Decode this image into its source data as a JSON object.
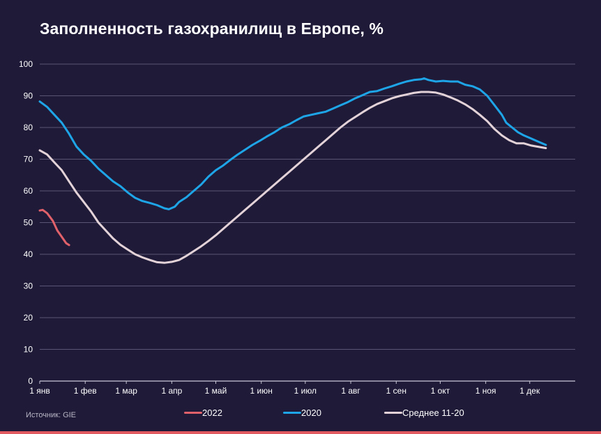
{
  "title": "Заполненность газохранилищ в Европе, %",
  "source": "Источник: GIE",
  "chart_data": {
    "type": "line",
    "title": "Заполненность газохранилищ в Европе, %",
    "xlabel": "",
    "ylabel": "",
    "ylim": [
      0,
      100
    ],
    "yticks": [
      0,
      10,
      20,
      30,
      40,
      50,
      60,
      70,
      80,
      90,
      100
    ],
    "xlim": [
      0,
      365
    ],
    "xticks": [
      {
        "x": 0,
        "label": "1 янв"
      },
      {
        "x": 31,
        "label": "1 фев"
      },
      {
        "x": 59,
        "label": "1 мар"
      },
      {
        "x": 90,
        "label": "1 апр"
      },
      {
        "x": 120,
        "label": "1 май"
      },
      {
        "x": 151,
        "label": "1 июн"
      },
      {
        "x": 181,
        "label": "1 июл"
      },
      {
        "x": 212,
        "label": "1 авг"
      },
      {
        "x": 243,
        "label": "1 сен"
      },
      {
        "x": 273,
        "label": "1 окт"
      },
      {
        "x": 304,
        "label": "1 ноя"
      },
      {
        "x": 334,
        "label": "1 дек"
      }
    ],
    "grid": true,
    "legend_position": "bottom",
    "series": [
      {
        "name": "2022",
        "color": "#e0616a",
        "points": [
          [
            0,
            53.8
          ],
          [
            2,
            54.0
          ],
          [
            5,
            53.0
          ],
          [
            9,
            50.5
          ],
          [
            12,
            47.5
          ],
          [
            15,
            45.5
          ],
          [
            18,
            43.5
          ],
          [
            20,
            42.9
          ]
        ]
      },
      {
        "name": "2020",
        "color": "#1ea5e8",
        "points": [
          [
            0,
            88.2
          ],
          [
            5,
            86.5
          ],
          [
            10,
            84.0
          ],
          [
            15,
            81.5
          ],
          [
            20,
            78.0
          ],
          [
            25,
            74.0
          ],
          [
            30,
            71.5
          ],
          [
            35,
            69.5
          ],
          [
            40,
            67.0
          ],
          [
            45,
            65.0
          ],
          [
            50,
            63.0
          ],
          [
            55,
            61.5
          ],
          [
            60,
            59.5
          ],
          [
            65,
            57.8
          ],
          [
            70,
            56.8
          ],
          [
            75,
            56.2
          ],
          [
            80,
            55.5
          ],
          [
            85,
            54.5
          ],
          [
            88,
            54.2
          ],
          [
            92,
            55.0
          ],
          [
            95,
            56.5
          ],
          [
            100,
            58.0
          ],
          [
            105,
            60.0
          ],
          [
            110,
            62.0
          ],
          [
            115,
            64.5
          ],
          [
            120,
            66.5
          ],
          [
            125,
            68.0
          ],
          [
            130,
            69.8
          ],
          [
            135,
            71.5
          ],
          [
            140,
            73.0
          ],
          [
            145,
            74.5
          ],
          [
            150,
            75.8
          ],
          [
            155,
            77.2
          ],
          [
            160,
            78.5
          ],
          [
            165,
            80.0
          ],
          [
            170,
            81.0
          ],
          [
            175,
            82.3
          ],
          [
            180,
            83.5
          ],
          [
            185,
            84.0
          ],
          [
            190,
            84.5
          ],
          [
            195,
            85.0
          ],
          [
            200,
            86.0
          ],
          [
            205,
            87.0
          ],
          [
            210,
            88.0
          ],
          [
            215,
            89.2
          ],
          [
            220,
            90.2
          ],
          [
            225,
            91.2
          ],
          [
            230,
            91.5
          ],
          [
            235,
            92.3
          ],
          [
            240,
            93.0
          ],
          [
            245,
            93.8
          ],
          [
            250,
            94.5
          ],
          [
            255,
            95.0
          ],
          [
            260,
            95.2
          ],
          [
            262,
            95.5
          ],
          [
            265,
            95.0
          ],
          [
            270,
            94.5
          ],
          [
            275,
            94.7
          ],
          [
            280,
            94.5
          ],
          [
            285,
            94.5
          ],
          [
            290,
            93.5
          ],
          [
            295,
            93.0
          ],
          [
            300,
            92.0
          ],
          [
            305,
            90.0
          ],
          [
            310,
            87.0
          ],
          [
            315,
            84.0
          ],
          [
            318,
            81.5
          ],
          [
            322,
            80.0
          ],
          [
            326,
            78.5
          ],
          [
            330,
            77.5
          ],
          [
            335,
            76.5
          ],
          [
            340,
            75.5
          ],
          [
            345,
            74.5
          ]
        ]
      },
      {
        "name": "Среднее 11-20",
        "color": "#e3d3d8",
        "points": [
          [
            0,
            72.8
          ],
          [
            5,
            71.5
          ],
          [
            10,
            69.0
          ],
          [
            15,
            66.5
          ],
          [
            20,
            63.0
          ],
          [
            25,
            59.5
          ],
          [
            30,
            56.5
          ],
          [
            35,
            53.5
          ],
          [
            40,
            50.0
          ],
          [
            45,
            47.5
          ],
          [
            50,
            45.0
          ],
          [
            55,
            43.0
          ],
          [
            60,
            41.5
          ],
          [
            65,
            40.0
          ],
          [
            70,
            39.0
          ],
          [
            75,
            38.2
          ],
          [
            80,
            37.5
          ],
          [
            85,
            37.3
          ],
          [
            90,
            37.6
          ],
          [
            95,
            38.2
          ],
          [
            100,
            39.5
          ],
          [
            105,
            41.0
          ],
          [
            110,
            42.5
          ],
          [
            115,
            44.2
          ],
          [
            120,
            46.0
          ],
          [
            125,
            48.0
          ],
          [
            130,
            50.0
          ],
          [
            135,
            52.0
          ],
          [
            140,
            54.0
          ],
          [
            145,
            56.0
          ],
          [
            150,
            58.0
          ],
          [
            155,
            60.0
          ],
          [
            160,
            62.0
          ],
          [
            165,
            64.0
          ],
          [
            170,
            66.0
          ],
          [
            175,
            68.0
          ],
          [
            180,
            70.0
          ],
          [
            185,
            72.0
          ],
          [
            190,
            74.0
          ],
          [
            195,
            76.0
          ],
          [
            200,
            78.0
          ],
          [
            205,
            80.0
          ],
          [
            210,
            81.8
          ],
          [
            215,
            83.3
          ],
          [
            220,
            84.8
          ],
          [
            225,
            86.2
          ],
          [
            230,
            87.4
          ],
          [
            235,
            88.3
          ],
          [
            240,
            89.2
          ],
          [
            245,
            89.9
          ],
          [
            250,
            90.4
          ],
          [
            255,
            90.9
          ],
          [
            260,
            91.2
          ],
          [
            265,
            91.2
          ],
          [
            270,
            91.0
          ],
          [
            275,
            90.4
          ],
          [
            280,
            89.5
          ],
          [
            285,
            88.5
          ],
          [
            290,
            87.3
          ],
          [
            295,
            85.8
          ],
          [
            300,
            84.0
          ],
          [
            305,
            82.0
          ],
          [
            310,
            79.5
          ],
          [
            315,
            77.5
          ],
          [
            320,
            76.0
          ],
          [
            325,
            75.0
          ],
          [
            330,
            75.0
          ],
          [
            335,
            74.3
          ],
          [
            345,
            73.5
          ]
        ]
      }
    ]
  }
}
